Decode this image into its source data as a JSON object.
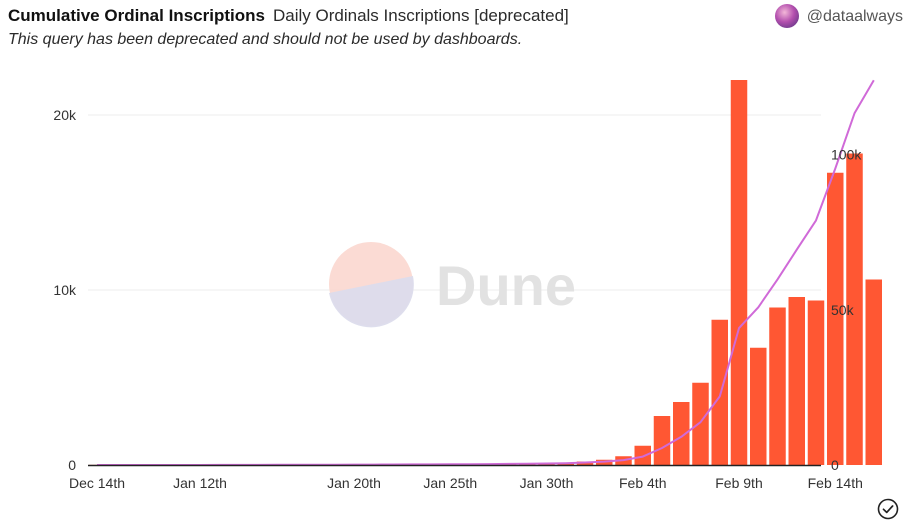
{
  "header": {
    "title": "Cumulative Ordinal Inscriptions",
    "query_name": "Daily Ordinals Inscriptions [deprecated]",
    "author": "@dataalways",
    "subtitle": "This query has been deprecated and should not be used by dashboards."
  },
  "watermark": {
    "text": "Dune"
  },
  "icons": {
    "avatar": "user-avatar-icon",
    "status": "check-circle-icon"
  },
  "colors": {
    "bar": "#ff5733",
    "line": "#d06ad8",
    "grid": "#ececec",
    "watermark_top": "#fbd7cf",
    "watermark_bottom": "#dcdcec"
  },
  "chart_data": {
    "type": "bar",
    "x_tick_labels": [
      "Dec 14th",
      "Jan 12th",
      "Jan 20th",
      "Jan 25th",
      "Jan 30th",
      "Feb 4th",
      "Feb 9th",
      "Feb 14th"
    ],
    "x": [
      "2022-12-14",
      "2023-01-12",
      "2023-01-13",
      "2023-01-14",
      "2023-01-15",
      "2023-01-16",
      "2023-01-17",
      "2023-01-18",
      "2023-01-19",
      "2023-01-20",
      "2023-01-21",
      "2023-01-22",
      "2023-01-23",
      "2023-01-24",
      "2023-01-25",
      "2023-01-26",
      "2023-01-27",
      "2023-01-28",
      "2023-01-29",
      "2023-01-30",
      "2023-01-31",
      "2023-02-01",
      "2023-02-02",
      "2023-02-03",
      "2023-02-04",
      "2023-02-05",
      "2023-02-06",
      "2023-02-07",
      "2023-02-08",
      "2023-02-09",
      "2023-02-10",
      "2023-02-11",
      "2023-02-12",
      "2023-02-13",
      "2023-02-14",
      "2023-02-15",
      "2023-02-16"
    ],
    "series": [
      {
        "type": "bar",
        "axis": "left",
        "values": [
          10,
          0,
          0,
          0,
          0,
          5,
          5,
          10,
          10,
          20,
          10,
          10,
          10,
          20,
          20,
          30,
          40,
          50,
          60,
          80,
          100,
          200,
          300,
          500,
          1100,
          2800,
          3600,
          4700,
          8300,
          22000,
          6700,
          9000,
          9600,
          9400,
          16700,
          17800,
          10600
        ]
      },
      {
        "type": "line",
        "axis": "right",
        "values": [
          0,
          10,
          20,
          30,
          40,
          50,
          60,
          80,
          100,
          120,
          140,
          160,
          180,
          200,
          230,
          260,
          300,
          350,
          410,
          490,
          590,
          790,
          1090,
          1590,
          2690,
          5490,
          9090,
          13790,
          22090,
          44090,
          50790,
          59790,
          69390,
          78790,
          95490,
          113290,
          123890
        ]
      }
    ],
    "y_left": {
      "ylim": [
        0,
        22000
      ],
      "ticks": [
        0,
        10000,
        20000
      ],
      "tick_labels": [
        "0",
        "10k",
        "20k"
      ]
    },
    "y_right": {
      "ylim": [
        0,
        124000
      ],
      "ticks": [
        0,
        50000,
        100000
      ],
      "tick_labels": [
        "0",
        "50k",
        "100k"
      ]
    },
    "grid": true
  }
}
